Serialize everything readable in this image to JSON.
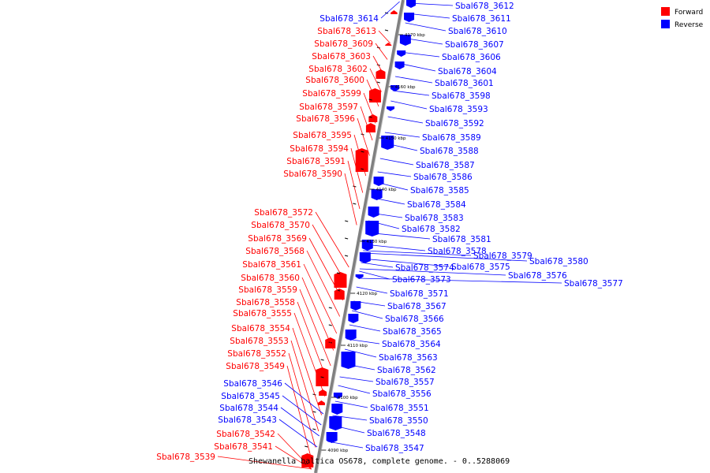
{
  "caption": "Shewanella baltica OS678, complete genome. - 0..5288069",
  "colors": {
    "forward": "#ff0000",
    "reverse": "#0000ff",
    "axis": "#808080"
  },
  "legend": [
    {
      "label": "Forward",
      "color": "#ff0000"
    },
    {
      "label": "Reverse",
      "color": "#0000ff"
    }
  ],
  "ticks": [
    "4090 kbp",
    "4100 kbp",
    "4110 kbp",
    "4120 kbp",
    "4130 kbp",
    "4140 kbp",
    "4150 kbp",
    "4160 kbp",
    "4170 kbp"
  ],
  "forward_genes": [
    "Sbal678_3613",
    "Sbal678_3609",
    "Sbal678_3603",
    "Sbal678_3602",
    "Sbal678_3600",
    "Sbal678_3599",
    "Sbal678_3597",
    "Sbal678_3596",
    "Sbal678_3595",
    "Sbal678_3594",
    "Sbal678_3591",
    "Sbal678_3590",
    "Sbal678_3572",
    "Sbal678_3570",
    "Sbal678_3569",
    "Sbal678_3568",
    "Sbal678_3561",
    "Sbal678_3560",
    "Sbal678_3559",
    "Sbal678_3558",
    "Sbal678_3555",
    "Sbal678_3554",
    "Sbal678_3553",
    "Sbal678_3552",
    "Sbal678_3549",
    "Sbal678_3542",
    "Sbal678_3541",
    "Sbal678_3539"
  ],
  "reverse_genes": [
    "Sbal678_3614",
    "Sbal678_3612",
    "Sbal678_3611",
    "Sbal678_3610",
    "Sbal678_3607",
    "Sbal678_3606",
    "Sbal678_3604",
    "Sbal678_3601",
    "Sbal678_3598",
    "Sbal678_3593",
    "Sbal678_3592",
    "Sbal678_3589",
    "Sbal678_3588",
    "Sbal678_3587",
    "Sbal678_3586",
    "Sbal678_3585",
    "Sbal678_3584",
    "Sbal678_3583",
    "Sbal678_3582",
    "Sbal678_3581",
    "Sbal678_3579",
    "Sbal678_3580",
    "Sbal678_3578",
    "Sbal678_3574",
    "Sbal678_3575",
    "Sbal678_3576",
    "Sbal678_3577",
    "Sbal678_3573",
    "Sbal678_3571",
    "Sbal678_3567",
    "Sbal678_3566",
    "Sbal678_3565",
    "Sbal678_3564",
    "Sbal678_3563",
    "Sbal678_3562",
    "Sbal678_3557",
    "Sbal678_3556",
    "Sbal678_3551",
    "Sbal678_3550",
    "Sbal678_3548",
    "Sbal678_3547",
    "Sbal678_3546",
    "Sbal678_3545",
    "Sbal678_3544",
    "Sbal678_3543"
  ]
}
